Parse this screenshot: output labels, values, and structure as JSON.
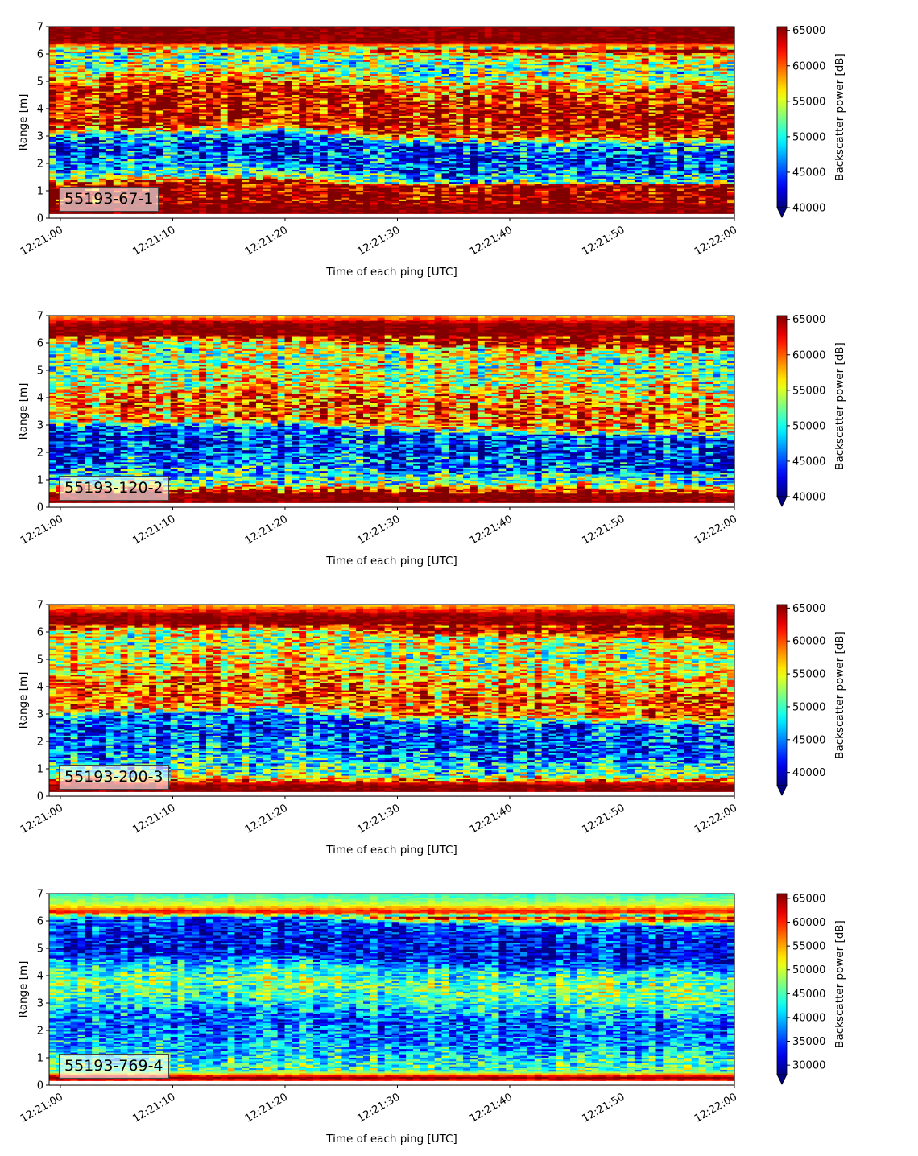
{
  "chart_data": [
    {
      "type": "heatmap",
      "label": "55193-67-1",
      "xlabel": "Time of each ping [UTC]",
      "ylabel": "Range [m]",
      "colorbar_label": "Backscatter power [dB]",
      "colormap": "jet",
      "x_ticks": [
        "12:21:00",
        "12:21:10",
        "12:21:20",
        "12:21:30",
        "12:21:40",
        "12:21:50",
        "12:22:00"
      ],
      "y_ticks": [
        0,
        1,
        2,
        3,
        4,
        5,
        6,
        7
      ],
      "ylim": [
        0,
        7
      ],
      "clim": [
        40000,
        65535
      ],
      "colorbar_ticks": [
        40000,
        45000,
        50000,
        55000,
        60000,
        65000
      ],
      "colorbar_extend": "min",
      "profile": [
        {
          "range": 0.2,
          "value": 65535
        },
        {
          "range": 1.2,
          "value": 65535
        },
        {
          "range": 1.5,
          "value": 52000
        },
        {
          "range": 2.0,
          "value": 46000
        },
        {
          "range": 2.5,
          "value": 44000
        },
        {
          "range": 3.0,
          "value": 46000
        },
        {
          "range": 3.3,
          "value": 62000
        },
        {
          "range": 4.0,
          "value": 64000
        },
        {
          "range": 4.8,
          "value": 62000
        },
        {
          "range": 5.3,
          "value": 55000
        },
        {
          "range": 5.8,
          "value": 51000
        },
        {
          "range": 6.3,
          "value": 57000
        },
        {
          "range": 6.45,
          "value": 65535
        },
        {
          "range": 7.0,
          "value": 65535
        }
      ],
      "layer_boundary": [
        {
          "time": "12:21:00",
          "range": 3.15
        },
        {
          "time": "12:21:20",
          "range": 3.3
        },
        {
          "time": "12:21:30",
          "range": 2.85
        },
        {
          "time": "12:22:00",
          "range": 2.8
        }
      ]
    },
    {
      "type": "heatmap",
      "label": "55193-120-2",
      "xlabel": "Time of each ping [UTC]",
      "ylabel": "Range [m]",
      "colorbar_label": "Backscatter power [dB]",
      "colormap": "jet",
      "x_ticks": [
        "12:21:00",
        "12:21:10",
        "12:21:20",
        "12:21:30",
        "12:21:40",
        "12:21:50",
        "12:22:00"
      ],
      "y_ticks": [
        0,
        1,
        2,
        3,
        4,
        5,
        6,
        7
      ],
      "ylim": [
        0,
        7
      ],
      "clim": [
        40000,
        65535
      ],
      "colorbar_ticks": [
        40000,
        45000,
        50000,
        55000,
        60000,
        65000
      ],
      "colorbar_extend": "min",
      "profile": [
        {
          "range": 0.15,
          "value": 65535
        },
        {
          "range": 0.5,
          "value": 65535
        },
        {
          "range": 0.9,
          "value": 52000
        },
        {
          "range": 1.6,
          "value": 46000
        },
        {
          "range": 2.3,
          "value": 43500
        },
        {
          "range": 2.9,
          "value": 45000
        },
        {
          "range": 3.2,
          "value": 59000
        },
        {
          "range": 3.9,
          "value": 60000
        },
        {
          "range": 4.6,
          "value": 56000
        },
        {
          "range": 5.4,
          "value": 53000
        },
        {
          "range": 6.0,
          "value": 55000
        },
        {
          "range": 6.3,
          "value": 65535
        },
        {
          "range": 6.7,
          "value": 65535
        },
        {
          "range": 7.0,
          "value": 58000
        }
      ],
      "layer_boundary": [
        {
          "time": "12:21:00",
          "range": 3.05
        },
        {
          "time": "12:21:20",
          "range": 3.1
        },
        {
          "time": "12:21:30",
          "range": 2.85
        },
        {
          "time": "12:22:00",
          "range": 2.65
        }
      ]
    },
    {
      "type": "heatmap",
      "label": "55193-200-3",
      "xlabel": "Time of each ping [UTC]",
      "ylabel": "Range [m]",
      "colorbar_label": "Backscatter power [dB]",
      "colormap": "jet",
      "x_ticks": [
        "12:21:00",
        "12:21:10",
        "12:21:20",
        "12:21:30",
        "12:21:40",
        "12:21:50",
        "12:22:00"
      ],
      "y_ticks": [
        0,
        1,
        2,
        3,
        4,
        5,
        6,
        7
      ],
      "ylim": [
        0,
        7
      ],
      "clim": [
        38000,
        65535
      ],
      "colorbar_ticks": [
        40000,
        45000,
        50000,
        55000,
        60000,
        65000
      ],
      "colorbar_extend": "min",
      "profile": [
        {
          "range": 0.1,
          "value": 65535
        },
        {
          "range": 0.4,
          "value": 65535
        },
        {
          "range": 0.8,
          "value": 51000
        },
        {
          "range": 1.5,
          "value": 45500
        },
        {
          "range": 2.3,
          "value": 43000
        },
        {
          "range": 2.9,
          "value": 44500
        },
        {
          "range": 3.2,
          "value": 59000
        },
        {
          "range": 3.9,
          "value": 60000
        },
        {
          "range": 4.6,
          "value": 56000
        },
        {
          "range": 5.4,
          "value": 53000
        },
        {
          "range": 6.0,
          "value": 55000
        },
        {
          "range": 6.3,
          "value": 65535
        },
        {
          "range": 6.6,
          "value": 65535
        },
        {
          "range": 7.0,
          "value": 57000
        }
      ],
      "layer_boundary": [
        {
          "time": "12:21:00",
          "range": 2.95
        },
        {
          "time": "12:21:20",
          "range": 3.15
        },
        {
          "time": "12:21:30",
          "range": 2.75
        },
        {
          "time": "12:22:00",
          "range": 2.6
        }
      ]
    },
    {
      "type": "heatmap",
      "label": "55193-769-4",
      "xlabel": "Time of each ping [UTC]",
      "ylabel": "Range [m]",
      "colorbar_label": "Backscatter power [dB]",
      "colormap": "jet",
      "x_ticks": [
        "12:21:00",
        "12:21:10",
        "12:21:20",
        "12:21:30",
        "12:21:40",
        "12:21:50",
        "12:22:00"
      ],
      "y_ticks": [
        0,
        1,
        2,
        3,
        4,
        5,
        6,
        7
      ],
      "ylim": [
        0,
        7
      ],
      "clim": [
        28000,
        66000
      ],
      "colorbar_ticks": [
        30000,
        35000,
        40000,
        45000,
        50000,
        55000,
        60000,
        65000
      ],
      "colorbar_extend": "min",
      "profile": [
        {
          "range": 0.1,
          "value": 58000
        },
        {
          "range": 0.3,
          "value": 66000
        },
        {
          "range": 0.5,
          "value": 46000
        },
        {
          "range": 1.2,
          "value": 41000
        },
        {
          "range": 2.0,
          "value": 37000
        },
        {
          "range": 2.6,
          "value": 37000
        },
        {
          "range": 3.2,
          "value": 44000
        },
        {
          "range": 3.8,
          "value": 47000
        },
        {
          "range": 4.3,
          "value": 43000
        },
        {
          "range": 4.8,
          "value": 33000
        },
        {
          "range": 5.6,
          "value": 33000
        },
        {
          "range": 6.1,
          "value": 37000
        },
        {
          "range": 6.35,
          "value": 62000
        },
        {
          "range": 6.6,
          "value": 50000
        },
        {
          "range": 7.0,
          "value": 44000
        }
      ],
      "layer_boundary": [
        {
          "time": "12:21:00",
          "range": 3.0
        },
        {
          "time": "12:21:20",
          "range": 3.1
        },
        {
          "time": "12:21:30",
          "range": 2.8
        },
        {
          "time": "12:22:00",
          "range": 2.7
        }
      ]
    }
  ]
}
